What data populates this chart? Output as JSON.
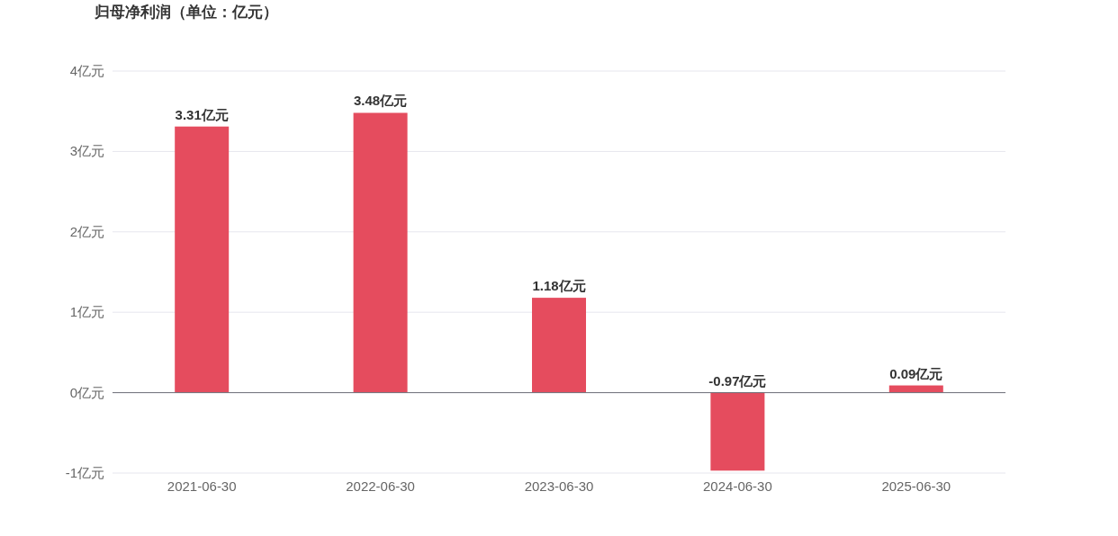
{
  "chart_data": {
    "type": "bar",
    "title": "归母净利润（单位：亿元）",
    "categories": [
      "2021-06-30",
      "2022-06-30",
      "2023-06-30",
      "2024-06-30",
      "2025-06-30"
    ],
    "values": [
      3.31,
      3.48,
      1.18,
      -0.97,
      0.09
    ],
    "value_labels": [
      "3.31亿元",
      "3.48亿元",
      "1.18亿元",
      "-0.97亿元",
      "0.09亿元"
    ],
    "color": "#e54c5e",
    "ylim": [
      -1,
      4
    ],
    "yticks": [
      {
        "value": -1,
        "label": "-1亿元"
      },
      {
        "value": 0,
        "label": "0亿元"
      },
      {
        "value": 1,
        "label": "1亿元"
      },
      {
        "value": 2,
        "label": "2亿元"
      },
      {
        "value": 3,
        "label": "3亿元"
      },
      {
        "value": 4,
        "label": "4亿元"
      }
    ],
    "grid": "y"
  }
}
